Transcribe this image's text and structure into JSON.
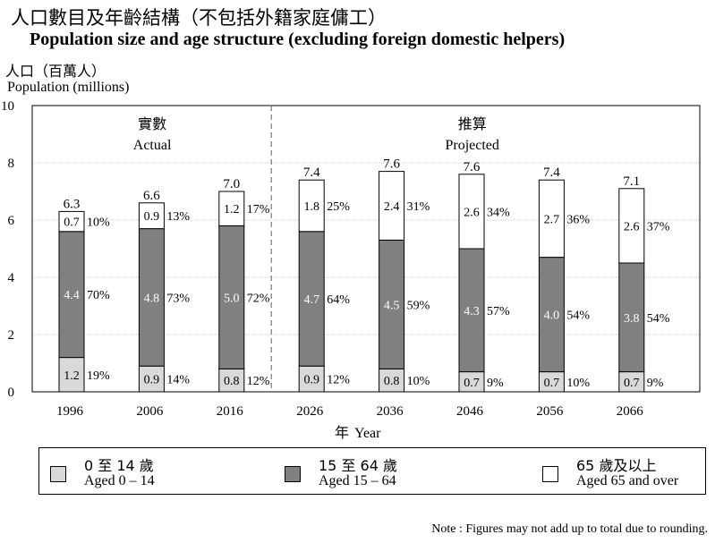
{
  "title_zh": "人口數目及年齡結構（不包括外籍家庭傭工）",
  "title_en": "Population size and age structure (excluding foreign domestic helpers)",
  "note": "Note : Figures may not add up to total due to rounding.",
  "colors": {
    "young": "#d9d9d9",
    "working": "#808080",
    "elderly": "#ffffff",
    "grid": "#cccccc"
  },
  "legend": [
    {
      "zh": "0 至 14 歲",
      "en": "Aged 0 – 14",
      "color": "#d9d9d9"
    },
    {
      "zh": "15 至 64 歲",
      "en": "Aged 15 – 64",
      "color": "#808080"
    },
    {
      "zh": "65 歲及以上",
      "en": "Aged 65 and over",
      "color": "#ffffff"
    }
  ],
  "chart_data": {
    "type": "bar",
    "stacked": true,
    "title": "Population size and age structure (excluding foreign domestic helpers)",
    "ylabel": "人口（百萬人） Population (millions)",
    "xlabel": "年 Year",
    "xlabel_zh": "年",
    "xlabel_en": "Year",
    "ylabel_zh": "人口（百萬人）",
    "ylabel_en": "Population (millions)",
    "ylim": [
      0,
      10
    ],
    "yticks": [
      0,
      2,
      4,
      6,
      8,
      10
    ],
    "grid": true,
    "legend_position": "bottom",
    "categories": [
      "1996",
      "2006",
      "2016",
      "2026",
      "2036",
      "2046",
      "2056",
      "2066"
    ],
    "totals": [
      "6.3",
      "6.6",
      "7.0",
      "7.4",
      "7.6",
      "7.6",
      "7.4",
      "7.1"
    ],
    "series": [
      {
        "name": "Aged 0 – 14",
        "values": [
          1.2,
          0.9,
          0.8,
          0.9,
          0.8,
          0.7,
          0.7,
          0.7
        ],
        "labels": [
          "1.2",
          "0.9",
          "0.8",
          "0.9",
          "0.8",
          "0.7",
          "0.7",
          "0.7"
        ],
        "percents": [
          "19%",
          "14%",
          "12%",
          "12%",
          "10%",
          "9%",
          "10%",
          "9%"
        ]
      },
      {
        "name": "Aged 15 – 64",
        "values": [
          4.4,
          4.8,
          5.0,
          4.7,
          4.5,
          4.3,
          4.0,
          3.8
        ],
        "labels": [
          "4.4",
          "4.8",
          "5.0",
          "4.7",
          "4.5",
          "4.3",
          "4.0",
          "3.8"
        ],
        "percents": [
          "70%",
          "73%",
          "72%",
          "64%",
          "59%",
          "57%",
          "54%",
          "54%"
        ]
      },
      {
        "name": "Aged 65 and over",
        "values": [
          0.7,
          0.9,
          1.2,
          1.8,
          2.4,
          2.6,
          2.7,
          2.6
        ],
        "labels": [
          "0.7",
          "0.9",
          "1.2",
          "1.8",
          "2.4",
          "2.6",
          "2.7",
          "2.6"
        ],
        "percents": [
          "10%",
          "13%",
          "17%",
          "25%",
          "31%",
          "34%",
          "36%",
          "37%"
        ]
      }
    ],
    "sections": [
      {
        "zh": "實數",
        "en": "Actual"
      },
      {
        "zh": "推算",
        "en": "Projected"
      }
    ]
  }
}
